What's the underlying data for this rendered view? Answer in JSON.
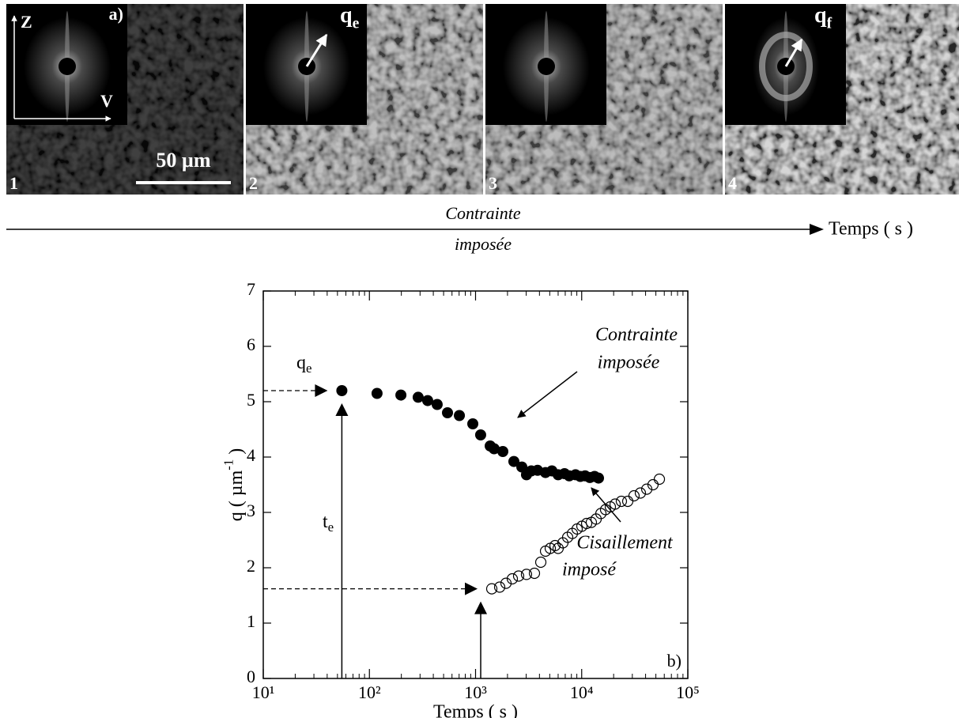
{
  "panels": {
    "labels": [
      "1",
      "2",
      "3",
      "4"
    ],
    "tag": "a)",
    "axis_z": "Z",
    "axis_v": "V",
    "scale_bar": "50 µm",
    "q_e": {
      "base": "q",
      "sub": "e"
    },
    "q_f": {
      "base": "q",
      "sub": "f"
    }
  },
  "timeline": {
    "label_top": "Contrainte",
    "label_bottom": "imposée",
    "end_label": "Temps ( s )"
  },
  "chart_data": {
    "type": "scatter",
    "xlabel": "Temps ( s )",
    "ylabel": {
      "base": "q ( µm",
      "sup": "-1",
      "tail": " )"
    },
    "xlog": true,
    "xlim": [
      10,
      100000
    ],
    "xticks": [
      {
        "value": 10,
        "label": "10¹"
      },
      {
        "value": 100,
        "label": "10²"
      },
      {
        "value": 1000,
        "label": "10³"
      },
      {
        "value": 10000,
        "label": "10⁴"
      },
      {
        "value": 100000,
        "label": "10⁵"
      }
    ],
    "ylim": [
      0,
      7
    ],
    "yticks": [
      0,
      1,
      2,
      3,
      4,
      5,
      6,
      7
    ],
    "panel_tag": "b)",
    "qe_label": {
      "base": "q",
      "sub": "e"
    },
    "te_label": {
      "base": "t",
      "sub": "e"
    },
    "series": [
      {
        "label": [
          "Contrainte",
          "imposée"
        ],
        "marker": "filled",
        "color": "#000000",
        "x": [
          55,
          118,
          198,
          288,
          354,
          435,
          544,
          704,
          942,
          1117,
          1374,
          1496,
          1807,
          2297,
          2730,
          3020,
          3350,
          3840,
          4560,
          5240,
          6000,
          6890,
          7630,
          8750,
          9710,
          10770,
          11930,
          13220,
          14400
        ],
        "values": [
          5.2,
          5.15,
          5.12,
          5.08,
          5.02,
          4.95,
          4.8,
          4.75,
          4.6,
          4.4,
          4.2,
          4.15,
          4.1,
          3.92,
          3.82,
          3.68,
          3.75,
          3.76,
          3.72,
          3.75,
          3.68,
          3.7,
          3.66,
          3.68,
          3.65,
          3.66,
          3.63,
          3.65,
          3.62
        ]
      },
      {
        "label": [
          "Cisaillement",
          "imposé"
        ],
        "marker": "open",
        "color": "#000000",
        "x": [
          1422,
          1688,
          1936,
          2220,
          2546,
          3020,
          3589,
          4118,
          4565,
          5058,
          5608,
          6000,
          6653,
          7376,
          8170,
          9057,
          10050,
          11140,
          12330,
          13680,
          15170,
          16790,
          18620,
          20650,
          23660,
          27160,
          31120,
          35730,
          41020,
          46990,
          53950
        ],
        "values": [
          1.62,
          1.65,
          1.72,
          1.8,
          1.85,
          1.88,
          1.9,
          2.1,
          2.3,
          2.35,
          2.4,
          2.35,
          2.45,
          2.55,
          2.62,
          2.7,
          2.75,
          2.8,
          2.82,
          2.88,
          2.98,
          3.05,
          3.1,
          3.15,
          3.2,
          3.2,
          3.3,
          3.35,
          3.42,
          3.5,
          3.6
        ]
      }
    ]
  }
}
